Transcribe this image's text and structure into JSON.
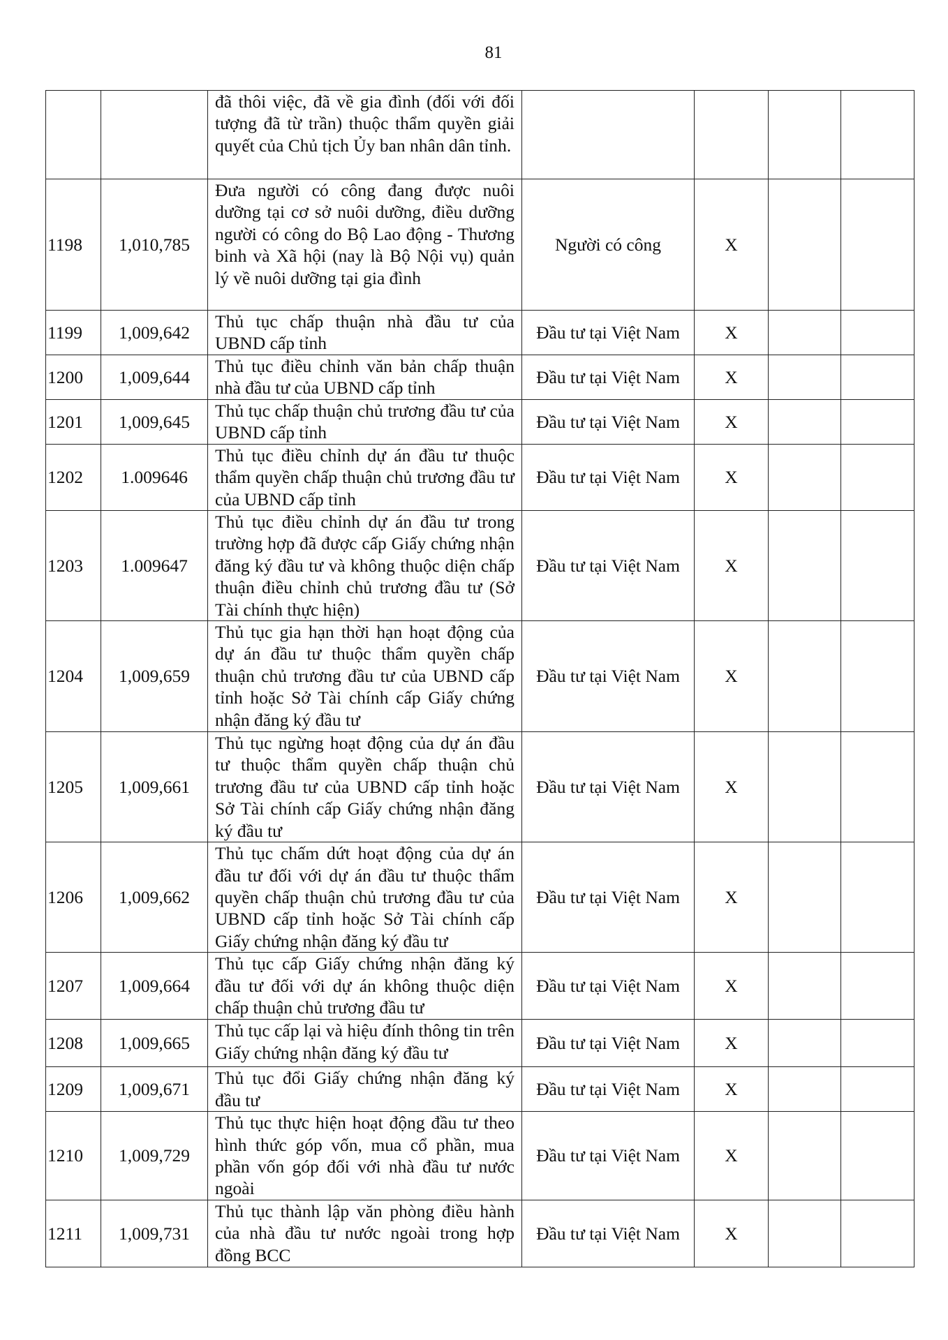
{
  "page_number": "81",
  "rows": [
    {
      "stt": "",
      "code": "",
      "name": "đã thôi việc, đã về gia đình (đối với đối tượng đã từ trần) thuộc thẩm quyền giải quyết của Chủ tịch Ủy ban nhân dân tỉnh.",
      "field": "",
      "mark": ""
    },
    {
      "stt": "1198",
      "code": "1,010,785",
      "name": "Đưa người có công đang được nuôi dưỡng tại cơ sở nuôi dưỡng, điều dưỡng người có công do Bộ Lao động - Thương binh và Xã hội (nay là Bộ Nội vụ) quản lý về nuôi dưỡng tại gia đình",
      "field": "Người có công",
      "mark": "X"
    },
    {
      "stt": "1199",
      "code": "1,009,642",
      "name": "Thủ tục chấp thuận nhà đầu tư của UBND cấp tỉnh",
      "field": "Đầu tư tại Việt Nam",
      "mark": "X"
    },
    {
      "stt": "1200",
      "code": "1,009,644",
      "name": "Thủ tục điều chỉnh văn bản chấp thuận nhà đầu tư của UBND cấp tỉnh",
      "field": "Đầu tư tại Việt Nam",
      "mark": "X"
    },
    {
      "stt": "1201",
      "code": "1,009,645",
      "name": "Thủ tục chấp thuận chủ trương đầu tư của UBND cấp tỉnh",
      "field": "Đầu tư tại Việt Nam",
      "mark": "X"
    },
    {
      "stt": "1202",
      "code": "1.009646",
      "name": "Thủ tục điều chỉnh dự án đầu tư thuộc thẩm quyền chấp thuận chủ trương đầu tư của UBND cấp tỉnh",
      "field": "Đầu tư tại Việt Nam",
      "mark": "X"
    },
    {
      "stt": "1203",
      "code": "1.009647",
      "name": "Thủ tục điều chỉnh dự án đầu tư trong trường hợp đã được cấp Giấy chứng nhận đăng ký đầu tư và không thuộc diện chấp thuận điều chỉnh chủ trương đầu tư (Sở Tài chính thực hiện)",
      "field": "Đầu tư tại Việt Nam",
      "mark": "X"
    },
    {
      "stt": "1204",
      "code": "1,009,659",
      "name": "Thủ tục gia hạn thời hạn hoạt động của dự án đầu tư thuộc thẩm quyền chấp thuận chủ trương đầu tư của UBND cấp tỉnh hoặc Sở Tài chính cấp Giấy chứng nhận đăng ký đầu tư",
      "field": "Đầu tư tại Việt Nam",
      "mark": "X"
    },
    {
      "stt": "1205",
      "code": "1,009,661",
      "name": "Thủ tục ngừng hoạt động của dự án đầu tư thuộc thẩm quyền chấp thuận chủ trương đầu tư của UBND cấp tỉnh hoặc Sở Tài chính cấp Giấy chứng nhận đăng ký đầu tư",
      "field": "Đầu tư tại Việt Nam",
      "mark": "X"
    },
    {
      "stt": "1206",
      "code": "1,009,662",
      "name": "Thủ tục chấm dứt hoạt động của dự án đầu tư đối với dự án đầu tư thuộc thẩm quyền chấp thuận chủ trương đầu tư của UBND cấp tỉnh hoặc Sở Tài chính cấp Giấy chứng nhận đăng ký đầu tư",
      "field": "Đầu tư tại Việt Nam",
      "mark": "X"
    },
    {
      "stt": "1207",
      "code": "1,009,664",
      "name": "Thủ tục cấp Giấy chứng nhận đăng ký đầu tư đối với dự án không thuộc diện chấp thuận chủ trương đầu tư",
      "field": "Đầu tư tại Việt Nam",
      "mark": "X"
    },
    {
      "stt": "1208",
      "code": "1,009,665",
      "name": "Thủ tục cấp lại và hiệu đính thông tin trên Giấy chứng nhận đăng ký đầu tư",
      "field": "Đầu tư tại Việt Nam",
      "mark": "X"
    },
    {
      "stt": "1209",
      "code": "1,009,671",
      "name": "Thủ tục đổi Giấy chứng nhận đăng ký đầu tư",
      "field": "Đầu tư tại Việt Nam",
      "mark": "X"
    },
    {
      "stt": "1210",
      "code": "1,009,729",
      "name": "Thủ tục thực hiện hoạt động đầu tư theo hình thức góp vốn, mua cổ phần, mua phần vốn góp đối với nhà đầu tư nước ngoài",
      "field": "Đầu tư tại Việt Nam",
      "mark": "X"
    },
    {
      "stt": "1211",
      "code": "1,009,731",
      "name": "Thủ tục thành lập văn phòng điều hành của nhà đầu tư nước ngoài trong hợp đồng BCC",
      "field": "Đầu tư tại Việt Nam",
      "mark": "X"
    }
  ]
}
